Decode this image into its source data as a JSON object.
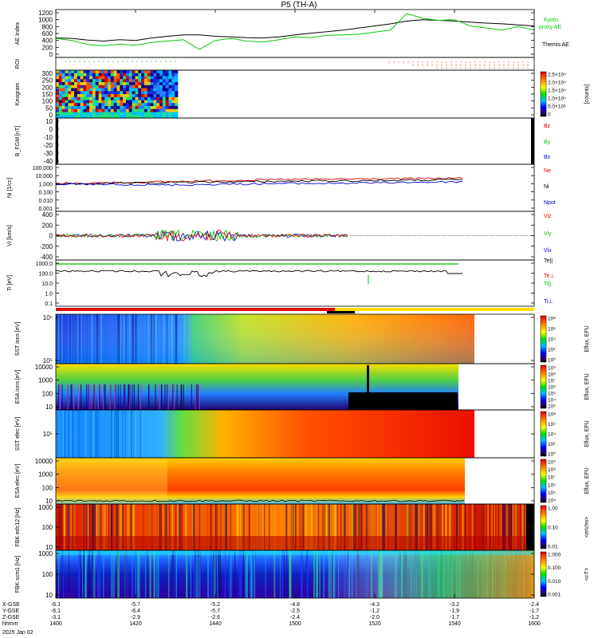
{
  "chart_data": {
    "title": "P5 (TH-A)",
    "type": "line",
    "date": "2025 Jan 02",
    "x_axis": {
      "row_labels": [
        "X-GSE",
        "Y-GSE",
        "Z-GSE",
        "hhmm"
      ],
      "ticks": [
        {
          "x": "-6.1",
          "y": "-6.1",
          "z": "-3.1",
          "t": "1400"
        },
        {
          "x": "-5.7",
          "y": "-6.4",
          "z": "-2.9",
          "t": "1420"
        },
        {
          "x": "-5.2",
          "y": "-5.7",
          "z": "-2.6",
          "t": "1440"
        },
        {
          "x": "-4.8",
          "y": "-2.5",
          "z": "-2.4",
          "t": "1500"
        },
        {
          "x": "-4.3",
          "y": "-1.2",
          "z": "-2.0",
          "t": "1520"
        },
        {
          "x": "-3.2",
          "y": "-1.9",
          "z": "-1.7",
          "t": "1540"
        },
        {
          "x": "-2.4",
          "y": "-1.7",
          "z": "-1.2",
          "t": "1600"
        }
      ]
    },
    "panels": [
      {
        "id": "ae",
        "ylabel": "AE Index",
        "yticks": [
          "1200",
          "1000",
          "800",
          "600",
          "400",
          "200",
          "0"
        ],
        "legend": [
          {
            "label": "Kyoto",
            "color": "#00cc00"
          },
          {
            "label": "proxy AE",
            "color": "#00cc00"
          },
          {
            "label": "Themis AE",
            "color": "#000000"
          }
        ],
        "series": [
          {
            "name": "Themis AE",
            "color": "#000000",
            "values": [
              470,
              460,
              410,
              380,
              420,
              400,
              470,
              520,
              560,
              560,
              520,
              500,
              480,
              470,
              500,
              560,
              610,
              650,
              700,
              760,
              820,
              880,
              960,
              1000,
              980,
              960,
              930,
              900,
              880,
              850,
              820
            ]
          },
          {
            "name": "Kyoto proxy AE",
            "color": "#00cc00",
            "values": [
              460,
              400,
              280,
              250,
              290,
              260,
              340,
              380,
              420,
              140,
              400,
              460,
              380,
              350,
              420,
              500,
              480,
              550,
              560,
              580,
              640,
              700,
              1180,
              1040,
              980,
              1000,
              820,
              760,
              700,
              800,
              700
            ]
          }
        ]
      },
      {
        "id": "roi",
        "ylabel": "ROI"
      },
      {
        "id": "keogram",
        "ylabel": "Keogram",
        "yticks": [
          "300",
          "250",
          "200",
          "150",
          "100",
          "50",
          "0"
        ],
        "colorbar": {
          "labels": [
            "2.5×10⁴",
            "2.0×10⁴",
            "1.5×10⁴",
            "1.0×10⁴",
            "5.0×10³",
            "0"
          ],
          "title": "[counts]"
        }
      },
      {
        "id": "bfgm",
        "ylabel": "B_FGM [nT]",
        "yticks": [
          "10",
          "0",
          "-10",
          "-20",
          "-30",
          "-40"
        ],
        "legend": [
          {
            "label": "Bz",
            "color": "#dd0000"
          },
          {
            "label": "By",
            "color": "#00bb00"
          },
          {
            "label": "Bx",
            "color": "#0000dd"
          }
        ]
      },
      {
        "id": "ni",
        "ylabel": "Ni [1/cc]",
        "yticks": [
          "100.000",
          "10.000",
          "1.000",
          "0.100",
          "0.010",
          "0.001"
        ],
        "legend": [
          {
            "label": "Ne",
            "color": "#dd0000"
          },
          {
            "label": "Ni",
            "color": "#000000"
          },
          {
            "label": "Npot",
            "color": "#0000dd"
          }
        ],
        "series": [
          {
            "name": "Ne",
            "color": "#dd0000",
            "values": [
              1.1,
              1.2,
              1.4,
              1.5,
              1.8,
              2.2,
              2.6,
              3.0,
              3.3,
              3.5,
              3.8,
              4.0,
              4.2,
              4.4,
              5.0
            ]
          },
          {
            "name": "Ni",
            "color": "#000000",
            "values": [
              0.9,
              1.0,
              1.1,
              1.2,
              1.4,
              1.5,
              1.7,
              1.9,
              2.0,
              2.2,
              2.3,
              2.5,
              2.6,
              2.8,
              3.2
            ]
          },
          {
            "name": "Npot",
            "color": "#0000dd",
            "values": [
              0.8,
              0.85,
              0.9,
              0.75,
              0.7,
              0.8,
              0.9,
              1.0,
              1.1,
              1.1,
              1.2,
              1.3,
              1.5,
              1.6,
              1.8
            ]
          }
        ]
      },
      {
        "id": "vi",
        "ylabel": "Vi [km/s]",
        "yticks": [
          "400",
          "200",
          "0",
          "-200",
          "-400"
        ],
        "legend": [
          {
            "label": "Viz",
            "color": "#dd0000"
          },
          {
            "label": "Viy",
            "color": "#00bb00"
          },
          {
            "label": "Vix",
            "color": "#0000dd"
          }
        ]
      },
      {
        "id": "ti",
        "ylabel": "Ti [eV]",
        "yticks": [
          "1000.0",
          "100.0",
          "10.0",
          "1.0",
          "0.1"
        ],
        "legend": [
          {
            "label": "Te||",
            "color": "#000000"
          },
          {
            "label": "Te⊥",
            "color": "#dd0000"
          },
          {
            "label": "Ti||",
            "color": "#00bb00"
          },
          {
            "label": "Ti⊥",
            "color": "#0000dd"
          }
        ]
      },
      {
        "id": "sst-ion",
        "ylabel": "SST ions [eV]",
        "yticks": [
          "10⁶",
          "10⁵"
        ],
        "colorbar": {
          "labels": [
            "10⁸",
            "10⁶",
            "10⁴",
            "10²",
            "10⁰"
          ],
          "title": "Eflux, EFU"
        }
      },
      {
        "id": "esa-ion",
        "ylabel": "ESA ions [eV]",
        "yticks": [
          "10000",
          "1000",
          "100",
          "10"
        ],
        "colorbar": {
          "labels": [
            "10⁹",
            "10⁸",
            "10⁷",
            "10⁶",
            "10⁵",
            "10⁴",
            "10³"
          ],
          "title": "Eflux, EFU"
        }
      },
      {
        "id": "sst-elec",
        "ylabel": "SST elec [eV]",
        "yticks": [
          "10⁵"
        ],
        "colorbar": {
          "labels": [
            "10⁸",
            "10⁶",
            "10⁴",
            "10²",
            "10⁰"
          ],
          "title": "Eflux, EFU"
        }
      },
      {
        "id": "esa-elec",
        "ylabel": "ESA elec [eV]",
        "yticks": [
          "10000",
          "1000",
          "100",
          "10"
        ],
        "colorbar": {
          "labels": [
            "10⁹",
            "10⁸",
            "10⁷",
            "10⁶",
            "10⁵",
            "10⁴"
          ],
          "title": "Eflux, EFU"
        }
      },
      {
        "id": "fbk-e",
        "ylabel": "FBK edc12 [Hz]",
        "yticks": [
          "1000",
          "100",
          "10"
        ],
        "colorbar": {
          "labels": [
            "1.00",
            "0.10",
            "0.01"
          ],
          "title": "<mV/m>"
        }
      },
      {
        "id": "fbk-b",
        "ylabel": "FBK scm1 [Hz]",
        "yticks": [
          "1000",
          "100",
          "10"
        ],
        "colorbar": {
          "labels": [
            "1.000",
            "0.100",
            "0.010",
            "0.001"
          ],
          "title": "<nT>"
        }
      }
    ]
  }
}
